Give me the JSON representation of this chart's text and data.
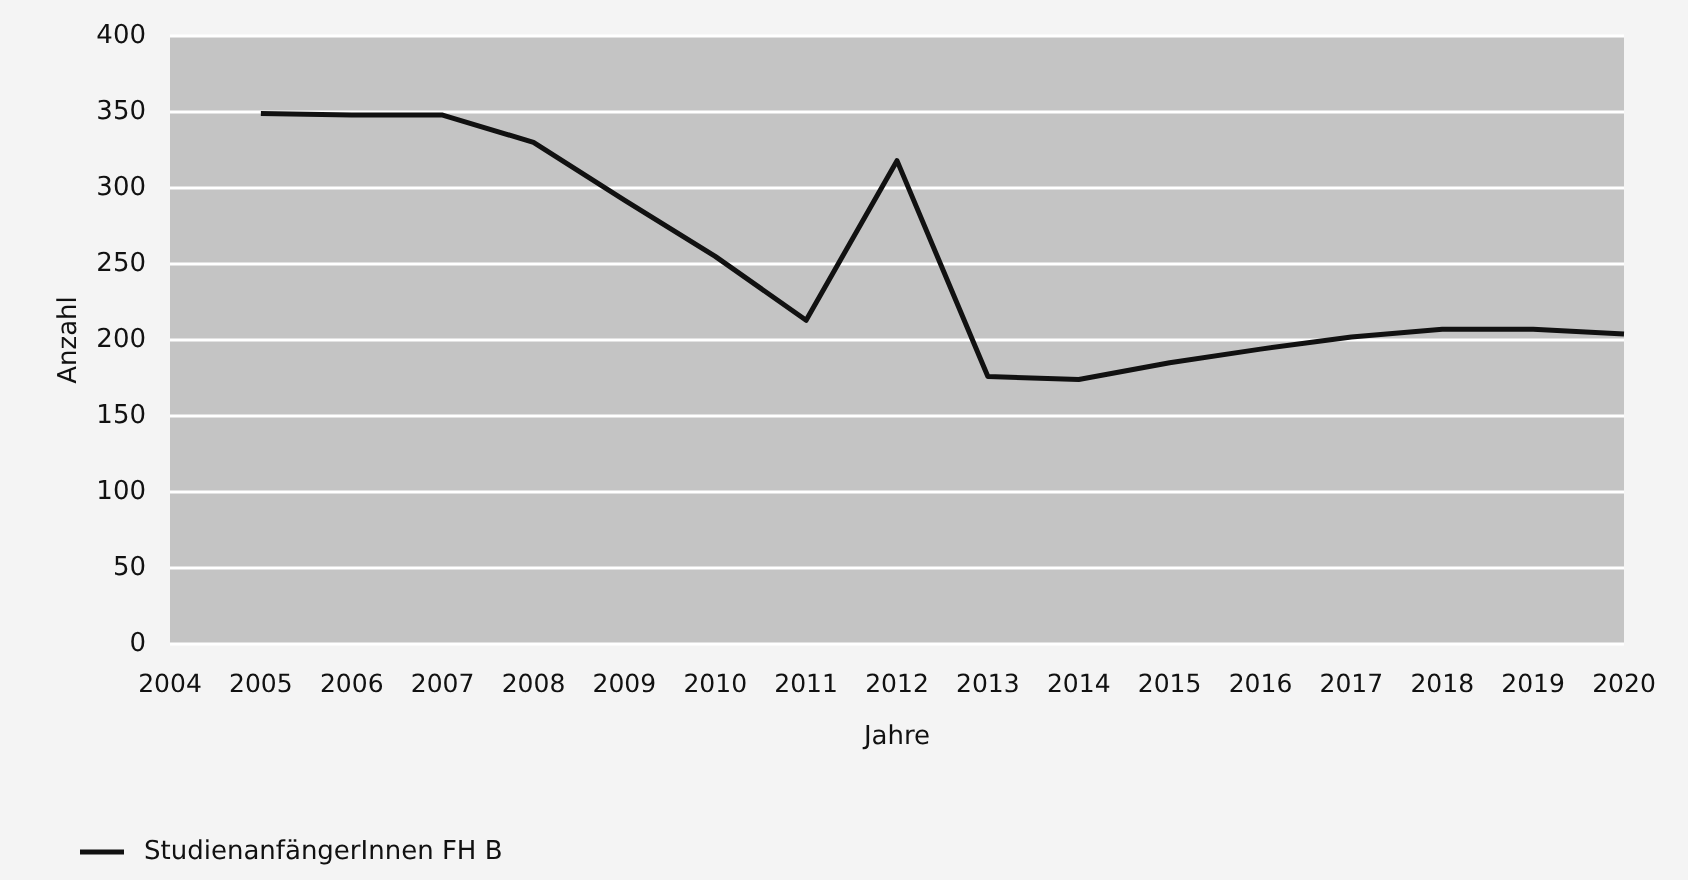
{
  "chart_data": {
    "type": "line",
    "xlabel": "Jahre",
    "ylabel": "Anzahl",
    "x": [
      2005,
      2006,
      2007,
      2008,
      2009,
      2010,
      2011,
      2012,
      2013,
      2014,
      2015,
      2016,
      2017,
      2018,
      2019,
      2020
    ],
    "series": [
      {
        "name": "StudienanfängerInnen FH B",
        "color": "#111111",
        "values": [
          349,
          348,
          348,
          330,
          292,
          255,
          213,
          318,
          176,
          174,
          185,
          194,
          202,
          207,
          207,
          204
        ]
      }
    ],
    "xlim": [
      2004,
      2020
    ],
    "xticks": [
      2004,
      2005,
      2006,
      2007,
      2008,
      2009,
      2010,
      2011,
      2012,
      2013,
      2014,
      2015,
      2016,
      2017,
      2018,
      2019,
      2020
    ],
    "ylim": [
      0,
      400
    ],
    "yticks": [
      0,
      50,
      100,
      150,
      200,
      250,
      300,
      350,
      400
    ],
    "grid": "y",
    "legend": "bottom",
    "marker": "none",
    "line_style": "solid"
  }
}
